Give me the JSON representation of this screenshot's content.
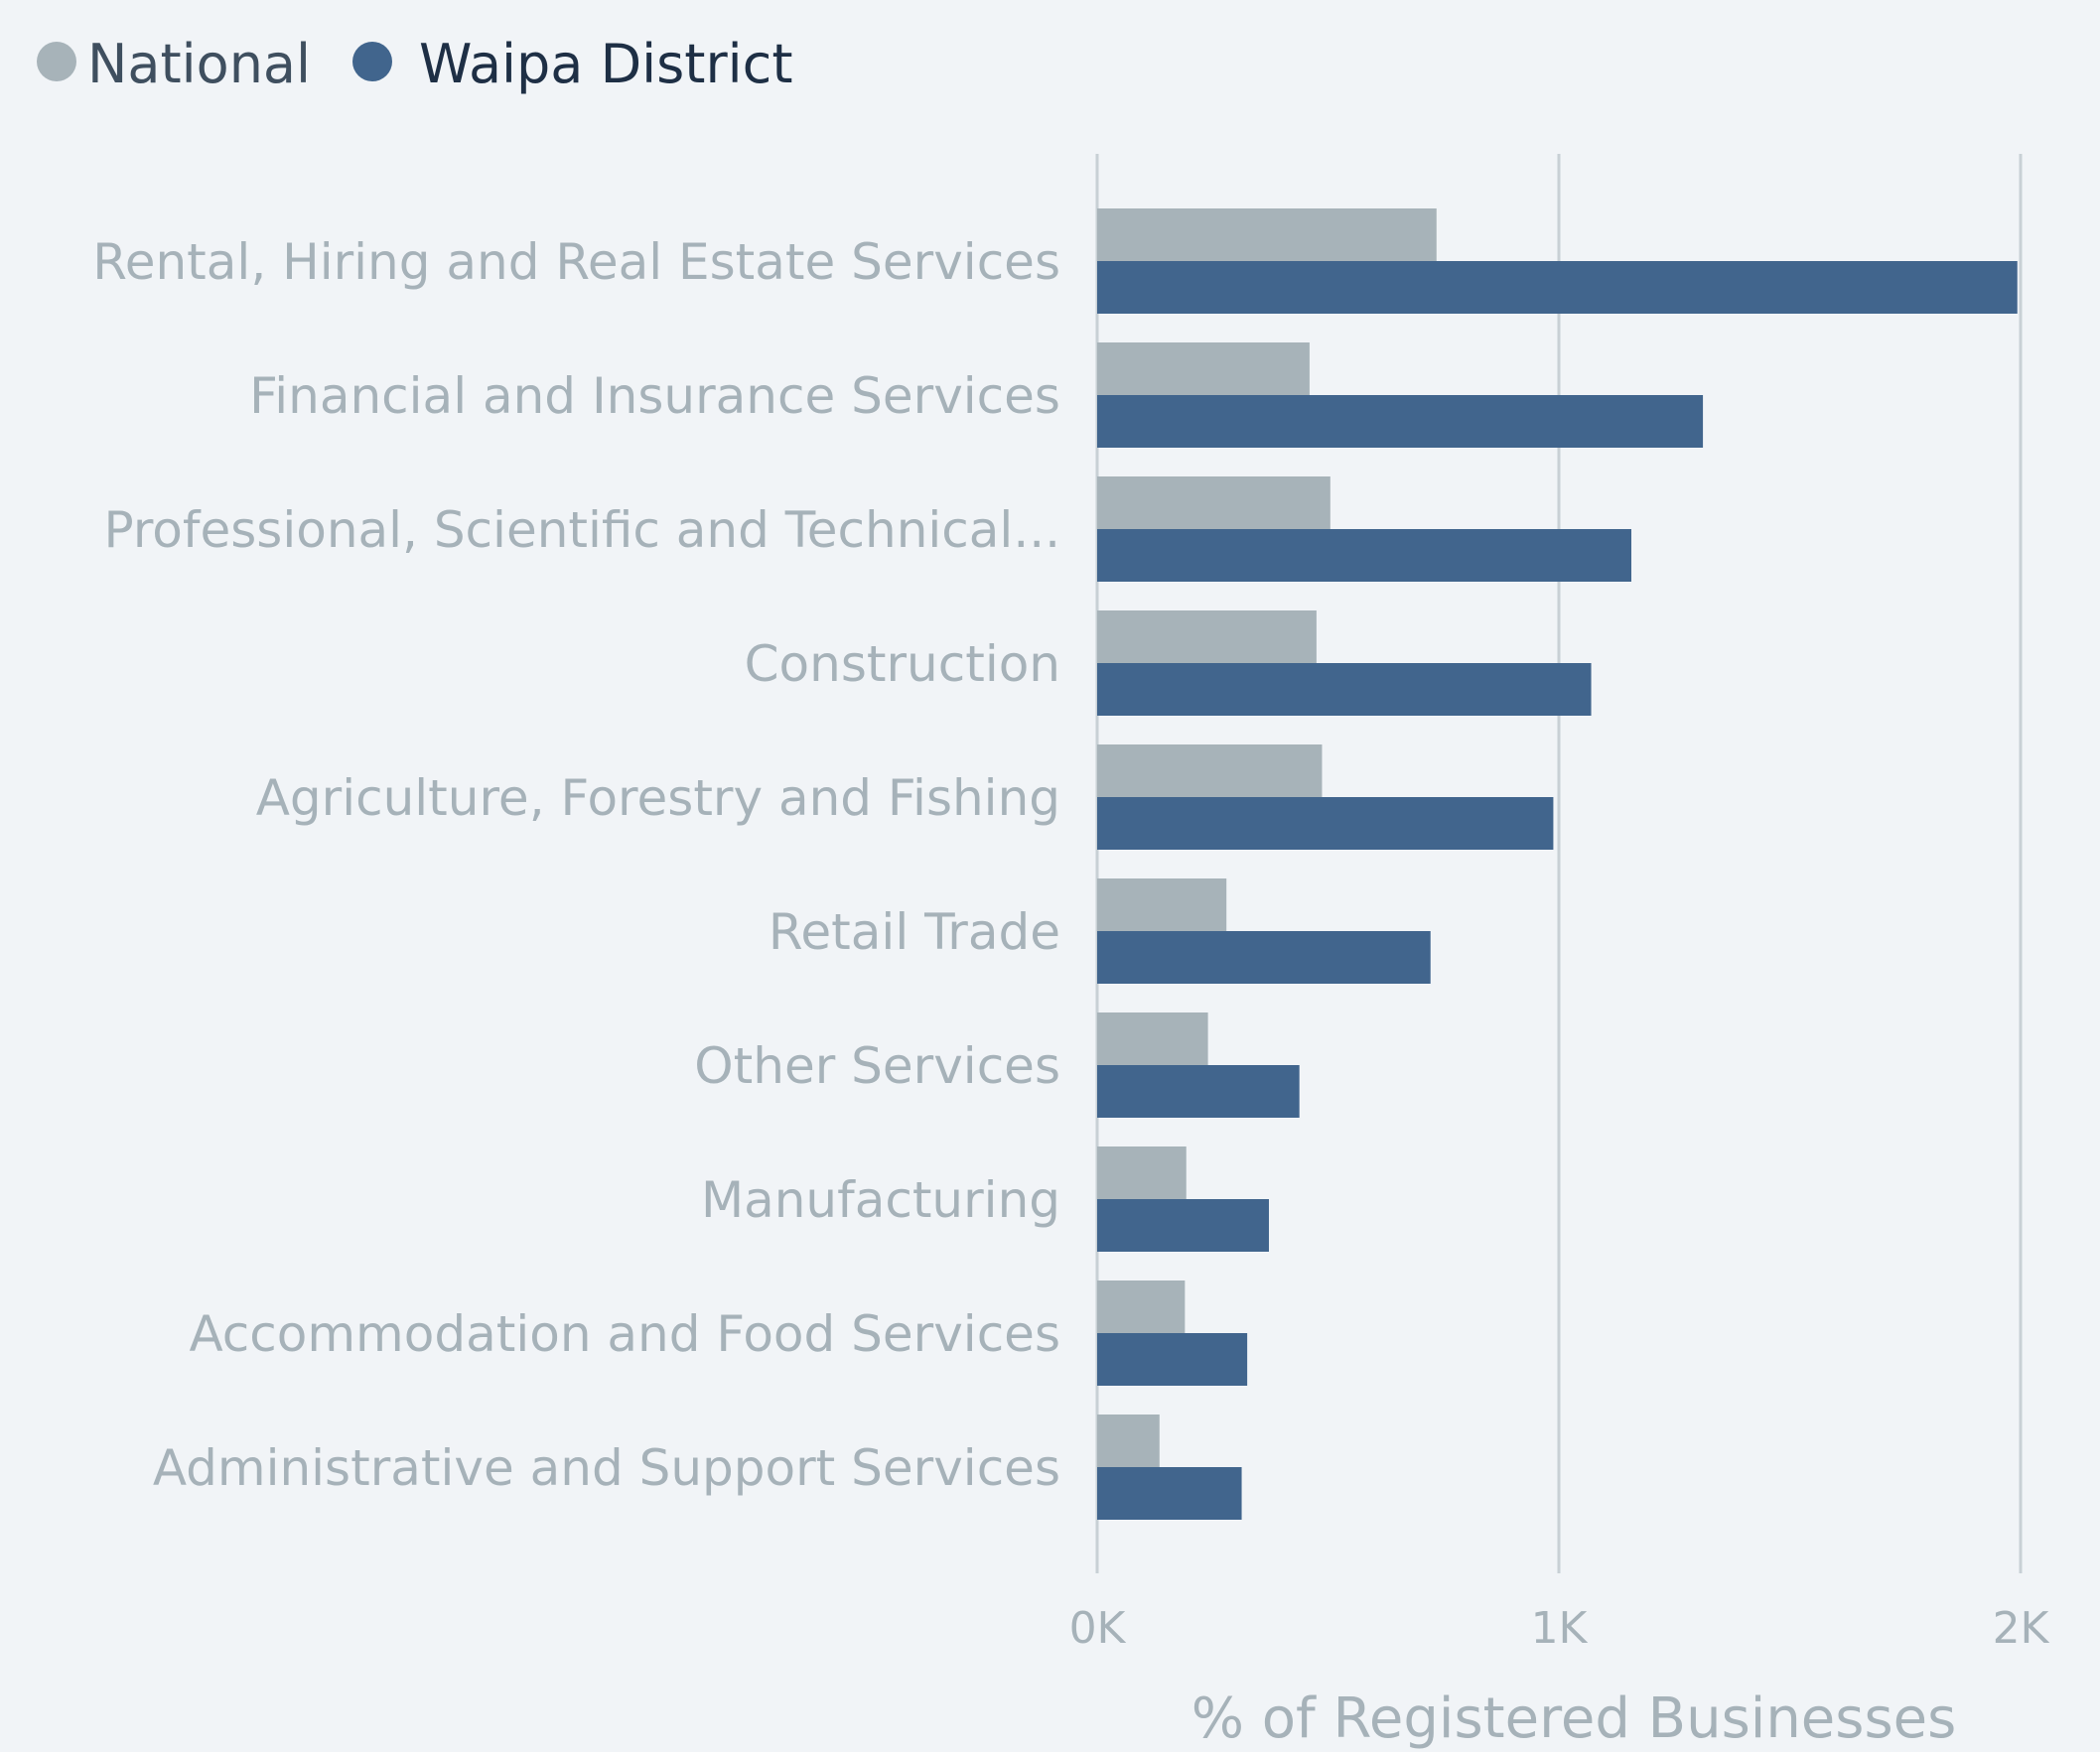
{
  "chart_data": {
    "type": "bar",
    "orientation": "horizontal",
    "title": "",
    "xlabel": "% of Registered Businesses",
    "ylabel": "",
    "xlim": [
      0,
      2000
    ],
    "ticks": [
      0,
      1000,
      2000
    ],
    "tick_labels": [
      "0K",
      "1K",
      "2K"
    ],
    "grid": true,
    "legend_position": "top-left",
    "categories": [
      "Rental, Hiring and Real Estate Services",
      "Financial and Insurance Services",
      "Professional, Scientific and Technical...",
      "Construction",
      "Agriculture, Forestry and Fishing",
      "Retail Trade",
      "Other Services",
      "Manufacturing",
      "Accommodation and Food Services",
      "Administrative and Support Services"
    ],
    "series": [
      {
        "name": "National",
        "color": "#a7b3b9",
        "values": [
          735,
          460,
          505,
          475,
          487,
          280,
          240,
          193,
          190,
          135
        ]
      },
      {
        "name": "Waipa District",
        "color": "#41658d",
        "values": [
          1993,
          1312,
          1157,
          1070,
          988,
          722,
          438,
          372,
          325,
          313
        ]
      }
    ]
  },
  "legend": {
    "items": [
      {
        "label": "National",
        "dot_color": "#a7b3b9",
        "text_color": "#3f4f5f"
      },
      {
        "label": "Waipa District",
        "dot_color": "#41658d",
        "text_color": "#1e2f45"
      }
    ]
  }
}
